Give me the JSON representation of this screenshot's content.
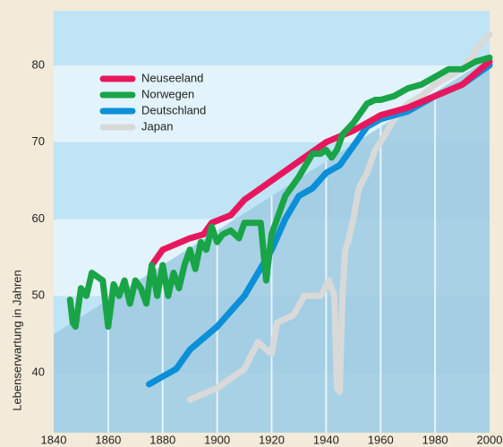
{
  "chart_data": {
    "type": "line",
    "y_label": "Lebenserwartung in Jahren",
    "xlim": [
      1840,
      2000
    ],
    "xticks": [
      1840,
      1860,
      1880,
      1900,
      1920,
      1940,
      1960,
      1980,
      2000
    ],
    "ylim": [
      32.2,
      87.1
    ],
    "yticks": [
      40,
      50,
      60,
      70,
      80
    ],
    "legend": "upper left",
    "background_area": {
      "color": "#9ecae1",
      "x": [
        1840,
        2000
      ],
      "values": [
        45,
        81
      ]
    },
    "series": [
      {
        "name": "Neuseeland",
        "color": "#e8175d",
        "x": [
          1876,
          1880,
          1890,
          1895,
          1898,
          1905,
          1910,
          1920,
          1930,
          1940,
          1950,
          1960,
          1970,
          1980,
          1990,
          2000
        ],
        "values": [
          54,
          56,
          57.5,
          58,
          59.5,
          60.5,
          62.5,
          65,
          67.5,
          70,
          71.5,
          73.5,
          74.5,
          76,
          77.5,
          80.5
        ]
      },
      {
        "name": "Norwegen",
        "color": "#19a448",
        "x": [
          1846,
          1847,
          1848,
          1850,
          1852,
          1854,
          1856,
          1858,
          1860,
          1862,
          1864,
          1866,
          1868,
          1870,
          1872,
          1874,
          1876,
          1878,
          1880,
          1882,
          1884,
          1886,
          1888,
          1890,
          1892,
          1894,
          1896,
          1898,
          1900,
          1902,
          1905,
          1908,
          1910,
          1913,
          1916,
          1918,
          1920,
          1925,
          1930,
          1935,
          1938,
          1940,
          1942,
          1944,
          1946,
          1950,
          1955,
          1958,
          1960,
          1965,
          1970,
          1975,
          1980,
          1985,
          1990,
          1995,
          2000
        ],
        "values": [
          49.5,
          46.5,
          46,
          51,
          50,
          53,
          52.5,
          52,
          46,
          51.5,
          50,
          52,
          49,
          52,
          51,
          49,
          54,
          50,
          54,
          50,
          53,
          51,
          54,
          56,
          53.5,
          57,
          56,
          59,
          57,
          58,
          58.5,
          57.5,
          59.5,
          59.5,
          59.5,
          52,
          58,
          63,
          65.5,
          68.5,
          68.5,
          69,
          68,
          69,
          71,
          72.5,
          75,
          75.5,
          75.5,
          76,
          77,
          77.5,
          78.5,
          79.5,
          79.5,
          80.5,
          81
        ]
      },
      {
        "name": "Deutschland",
        "color": "#0a8fd8",
        "x": [
          1875,
          1880,
          1885,
          1890,
          1900,
          1910,
          1920,
          1925,
          1930,
          1935,
          1940,
          1945,
          1950,
          1955,
          1960,
          1965,
          1970,
          1980,
          1990,
          2000
        ],
        "values": [
          38.5,
          39.5,
          40.5,
          43,
          46,
          50,
          56,
          60,
          63,
          64,
          66,
          67,
          69.5,
          72,
          73,
          73.5,
          74,
          76,
          77.5,
          80
        ]
      },
      {
        "name": "Japan",
        "color": "#d9d9d9",
        "x": [
          1890,
          1900,
          1910,
          1915,
          1918,
          1920,
          1922,
          1925,
          1928,
          1932,
          1935,
          1938,
          1941,
          1943,
          1944,
          1945,
          1946,
          1947,
          1948,
          1950,
          1952,
          1955,
          1958,
          1960,
          1965,
          1970,
          1975,
          1980,
          1990,
          1995,
          2000
        ],
        "values": [
          36.5,
          38,
          40.5,
          44,
          43,
          42.5,
          46.5,
          47,
          47.5,
          50,
          50,
          50,
          52,
          50,
          38,
          37.5,
          50,
          56,
          57,
          60,
          64,
          66,
          69,
          70,
          73,
          75,
          76,
          77.5,
          79.5,
          82,
          84
        ]
      }
    ]
  }
}
